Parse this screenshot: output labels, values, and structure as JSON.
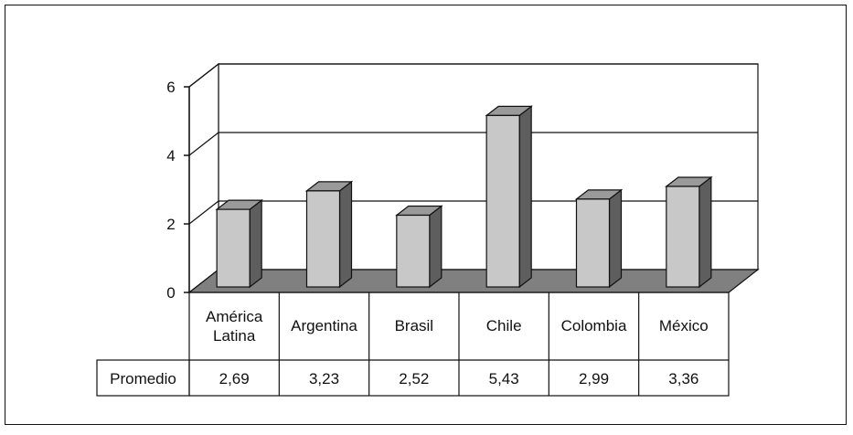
{
  "chart_data": {
    "type": "bar",
    "categories": [
      "América Latina",
      "Argentina",
      "Brasil",
      "Chile",
      "Colombia",
      "México"
    ],
    "category_lines": [
      [
        "América",
        "Latina"
      ],
      [
        "Argentina"
      ],
      [
        "Brasil"
      ],
      [
        "Chile"
      ],
      [
        "Colombia"
      ],
      [
        "México"
      ]
    ],
    "series": [
      {
        "name": "Promedio",
        "values": [
          2.69,
          3.23,
          2.52,
          5.43,
          2.99,
          3.36
        ]
      }
    ],
    "value_labels": [
      "2,69",
      "3,23",
      "2,52",
      "5,43",
      "2,99",
      "3,36"
    ],
    "ylim": [
      0,
      6
    ],
    "yticks": [
      0,
      2,
      4,
      6
    ],
    "grid": true,
    "style": "3d-bar-with-data-table",
    "colors": {
      "bar_front": "#c8c8c8",
      "bar_top": "#9a9a9a",
      "bar_side": "#5e5e5e",
      "floor": "#808080",
      "line": "#111111"
    }
  }
}
